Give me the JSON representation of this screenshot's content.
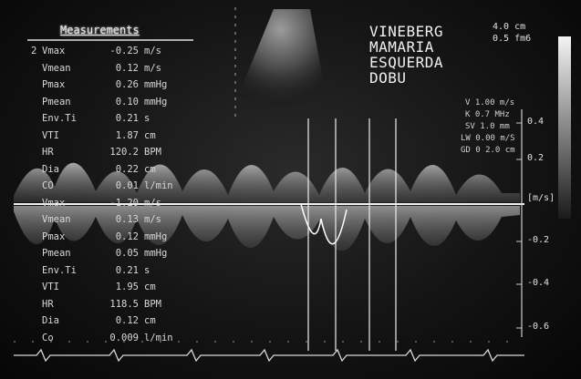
{
  "measurements": {
    "title": "Measurements",
    "rows": [
      {
        "idx": "2",
        "name": "Vmax",
        "value": "-0.25",
        "unit": "m/s"
      },
      {
        "idx": "",
        "name": "Vmean",
        "value": "0.12",
        "unit": "m/s"
      },
      {
        "idx": "",
        "name": "Pmax",
        "value": "0.26",
        "unit": "mmHg"
      },
      {
        "idx": "",
        "name": "Pmean",
        "value": "0.10",
        "unit": "mmHg"
      },
      {
        "idx": "",
        "name": "Env.Ti",
        "value": "0.21",
        "unit": "s"
      },
      {
        "idx": "",
        "name": "VTI",
        "value": "1.87",
        "unit": "cm"
      },
      {
        "idx": "",
        "name": "HR",
        "value": "120.2",
        "unit": "BPM"
      },
      {
        "idx": "",
        "name": "Dia",
        "value": "0.22",
        "unit": "cm"
      },
      {
        "idx": "",
        "name": "CO",
        "value": "0.01",
        "unit": "l/min"
      },
      {
        "idx": "",
        "name": "Vmax",
        "value": "-1.20",
        "unit": "m/s"
      },
      {
        "idx": "",
        "name": "Vmean",
        "value": "0.13",
        "unit": "m/s"
      },
      {
        "idx": "",
        "name": "Pmax",
        "value": "0.12",
        "unit": "mmHg"
      },
      {
        "idx": "",
        "name": "Pmean",
        "value": "0.05",
        "unit": "mmHg"
      },
      {
        "idx": "",
        "name": "Env.Ti",
        "value": "0.21",
        "unit": "s"
      },
      {
        "idx": "",
        "name": "VTI",
        "value": "1.95",
        "unit": "cm"
      },
      {
        "idx": "",
        "name": "HR",
        "value": "118.5",
        "unit": "BPM"
      },
      {
        "idx": "",
        "name": "Dia",
        "value": "0.12",
        "unit": "cm"
      },
      {
        "idx": "",
        "name": "Co",
        "value": "0.009",
        "unit": "l/min"
      }
    ]
  },
  "location": {
    "line1": "VINEBERG",
    "line2": "MAMARIA",
    "line3": "ESQUERDA",
    "line4": "DOBU"
  },
  "depth": {
    "line1": "4.0 cm",
    "line2": "0.5 fm6"
  },
  "params": {
    "v": "V 1.00 m/s",
    "k": "K 0.7 MHz",
    "gv": "SV 1.0 mm",
    "lw": "LW 0.00 m/S",
    "gd": "GD 0 2.0 cm"
  },
  "scale": {
    "top1": "0.4",
    "top2": "0.2",
    "unit": "[m/s]",
    "m1": "-0.2",
    "m2": "-0.4",
    "m3": "-0.6"
  }
}
